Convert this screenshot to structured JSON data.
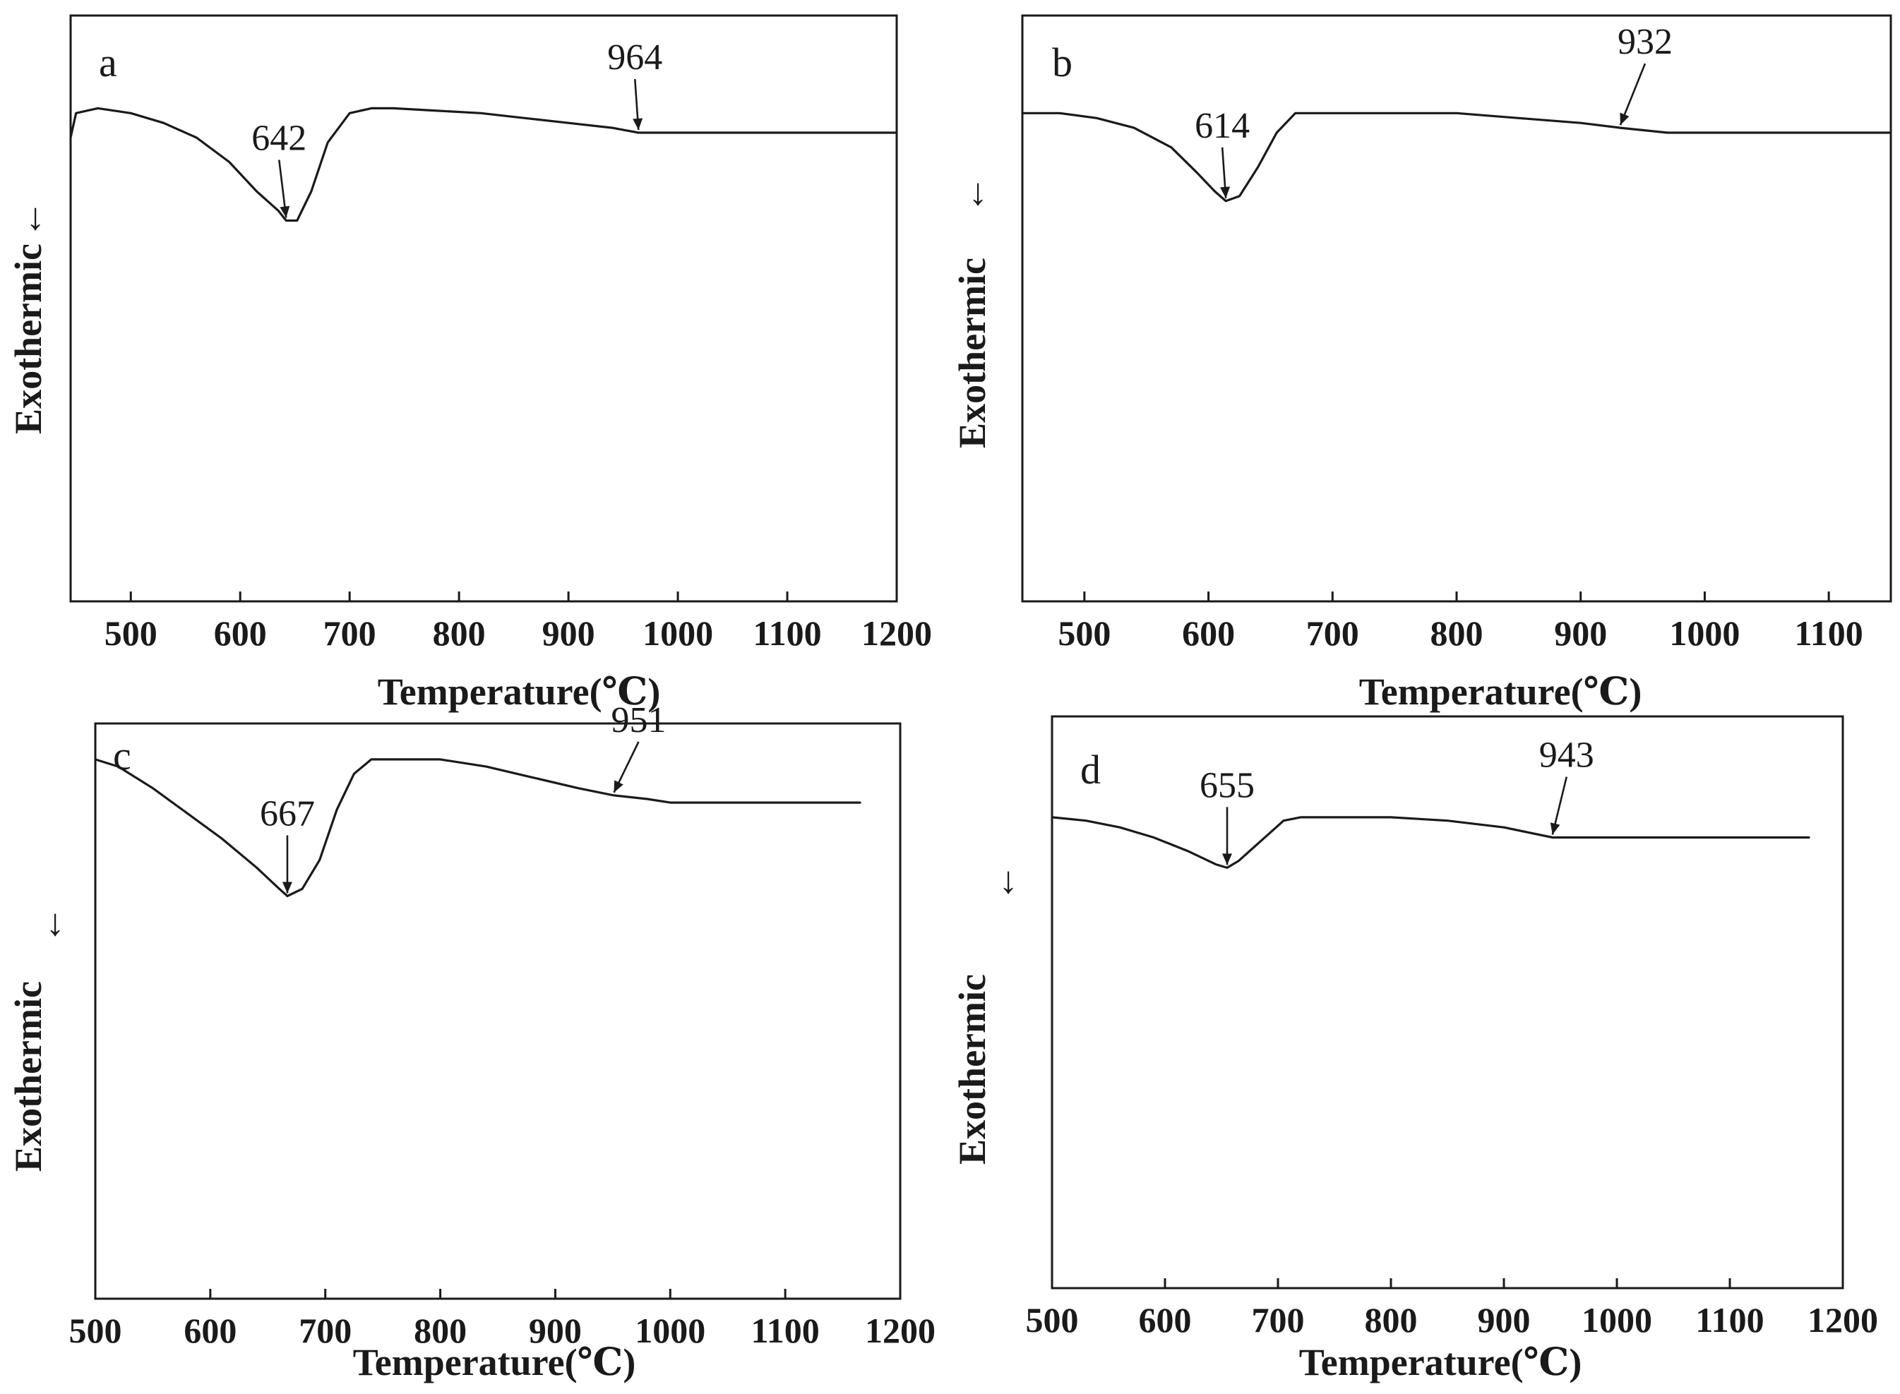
{
  "figure": {
    "y_direction_glyph": "↓"
  },
  "chart_data": [
    {
      "id": "a",
      "type": "line",
      "panel_label": "a",
      "xlabel": "Temperature(℃)",
      "ylabel": "Exothermic",
      "xlim": [
        445,
        1200
      ],
      "ylim": [
        -1,
        0.2
      ],
      "xticks": [
        500,
        600,
        700,
        800,
        900,
        1000,
        1100,
        1200
      ],
      "x": [
        445,
        450,
        470,
        500,
        530,
        560,
        590,
        615,
        635,
        642,
        652,
        665,
        680,
        700,
        720,
        740,
        780,
        820,
        860,
        900,
        940,
        964,
        1000,
        1050,
        1100,
        1150,
        1200
      ],
      "y": [
        -0.05,
        0.0,
        0.01,
        0.0,
        -0.02,
        -0.05,
        -0.1,
        -0.16,
        -0.2,
        -0.22,
        -0.22,
        -0.16,
        -0.06,
        0.0,
        0.01,
        0.01,
        0.005,
        0.0,
        -0.01,
        -0.02,
        -0.03,
        -0.04,
        -0.04,
        -0.04,
        -0.04,
        -0.04,
        -0.04
      ],
      "annotations": [
        {
          "text": "642",
          "x": 642
        },
        {
          "text": "964",
          "x": 964
        }
      ]
    },
    {
      "id": "b",
      "type": "line",
      "panel_label": "b",
      "xlabel": "Temperature(℃)",
      "ylabel": "Exothermic",
      "xlim": [
        450,
        1150
      ],
      "ylim": [
        -1,
        0.2
      ],
      "xticks": [
        500,
        600,
        700,
        800,
        900,
        1000,
        1100
      ],
      "x": [
        450,
        480,
        510,
        540,
        570,
        590,
        605,
        614,
        625,
        640,
        655,
        670,
        700,
        750,
        800,
        850,
        900,
        932,
        970,
        1000,
        1050,
        1100,
        1150
      ],
      "y": [
        0.0,
        0.0,
        -0.01,
        -0.03,
        -0.07,
        -0.12,
        -0.16,
        -0.18,
        -0.17,
        -0.11,
        -0.04,
        0.0,
        0.0,
        0.0,
        0.0,
        -0.01,
        -0.02,
        -0.03,
        -0.04,
        -0.04,
        -0.04,
        -0.04,
        -0.04
      ],
      "annotations": [
        {
          "text": "614",
          "x": 614
        },
        {
          "text": "932",
          "x": 932
        }
      ]
    },
    {
      "id": "c",
      "type": "line",
      "panel_label": "c",
      "xlabel": "Temperature(℃)",
      "ylabel": "Exothermic",
      "xlim": [
        500,
        1200
      ],
      "ylim": [
        -1.5,
        0.1
      ],
      "xticks": [
        500,
        600,
        700,
        800,
        900,
        1000,
        1100,
        1200
      ],
      "x": [
        500,
        520,
        550,
        580,
        610,
        640,
        660,
        667,
        680,
        695,
        710,
        725,
        740,
        760,
        800,
        840,
        880,
        920,
        951,
        980,
        1000,
        1050,
        1100,
        1140,
        1165
      ],
      "y": [
        0.0,
        -0.02,
        -0.08,
        -0.15,
        -0.22,
        -0.3,
        -0.36,
        -0.38,
        -0.36,
        -0.28,
        -0.14,
        -0.04,
        0.0,
        0.0,
        0.0,
        -0.02,
        -0.05,
        -0.08,
        -0.1,
        -0.11,
        -0.12,
        -0.12,
        -0.12,
        -0.12,
        -0.12
      ],
      "annotations": [
        {
          "text": "667",
          "x": 667
        },
        {
          "text": "951",
          "x": 951
        }
      ]
    },
    {
      "id": "d",
      "type": "line",
      "panel_label": "d",
      "xlabel": "Temperature(℃)",
      "ylabel": "Exothermic",
      "xlim": [
        500,
        1200
      ],
      "ylim": [
        -1.4,
        0.3
      ],
      "xticks": [
        500,
        600,
        700,
        800,
        900,
        1000,
        1100,
        1200
      ],
      "x": [
        500,
        530,
        560,
        590,
        620,
        645,
        655,
        665,
        685,
        705,
        720,
        760,
        800,
        850,
        900,
        943,
        980,
        1000,
        1050,
        1100,
        1150,
        1170
      ],
      "y": [
        0.0,
        -0.01,
        -0.03,
        -0.06,
        -0.1,
        -0.14,
        -0.15,
        -0.13,
        -0.07,
        -0.01,
        0.0,
        0.0,
        0.0,
        -0.01,
        -0.03,
        -0.06,
        -0.06,
        -0.06,
        -0.06,
        -0.06,
        -0.06,
        -0.06
      ],
      "annotations": [
        {
          "text": "655",
          "x": 655
        },
        {
          "text": "943",
          "x": 943
        }
      ]
    }
  ]
}
